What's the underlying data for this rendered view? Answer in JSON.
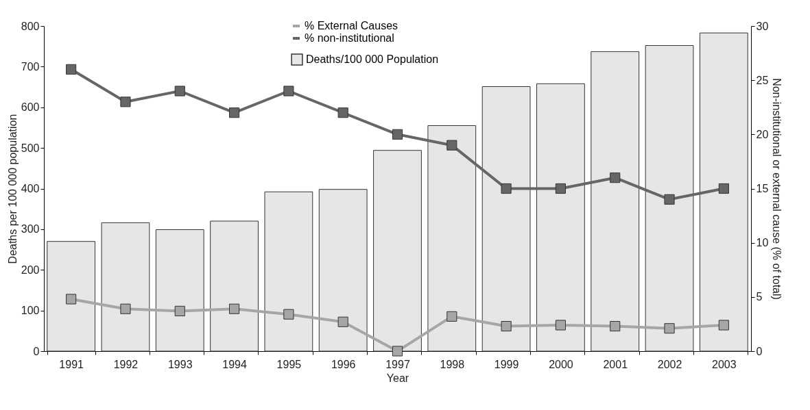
{
  "chart_data": {
    "type": "bar",
    "xlabel": "Year",
    "ylabel": "Deaths per 100 000 population",
    "y2label": "Non-institutional or external cause (% of total)",
    "categories": [
      "1991",
      "1992",
      "1993",
      "1994",
      "1995",
      "1996",
      "1997",
      "1998",
      "1999",
      "2000",
      "2001",
      "2002",
      "2003"
    ],
    "series": [
      {
        "name": "% External Causes",
        "type": "line",
        "axis": "y2",
        "color": "#a6a6a6",
        "values": [
          4.8,
          3.9,
          3.7,
          3.9,
          3.4,
          2.7,
          0,
          3.2,
          2.3,
          2.4,
          2.3,
          2.1,
          2.4
        ]
      },
      {
        "name": "% non-institutional",
        "type": "line",
        "axis": "y2",
        "color": "#666666",
        "values": [
          26,
          23,
          24,
          22,
          24,
          22,
          20,
          19,
          15,
          15,
          16,
          14,
          15
        ]
      },
      {
        "name": "Deaths/100 000 Population",
        "color": "#e6e6e6",
        "values": [
          270,
          316,
          299,
          320,
          392,
          398,
          494,
          555,
          651,
          658,
          737,
          752,
          783
        ]
      }
    ],
    "ylim": [
      0,
      800
    ],
    "yticks": [
      0,
      100,
      200,
      300,
      400,
      500,
      600,
      700,
      800
    ],
    "y2lim": [
      0,
      30
    ],
    "y2ticks": [
      0,
      5,
      10,
      15,
      20,
      25,
      30
    ],
    "marker": "square",
    "grid": false,
    "legend": "top"
  }
}
